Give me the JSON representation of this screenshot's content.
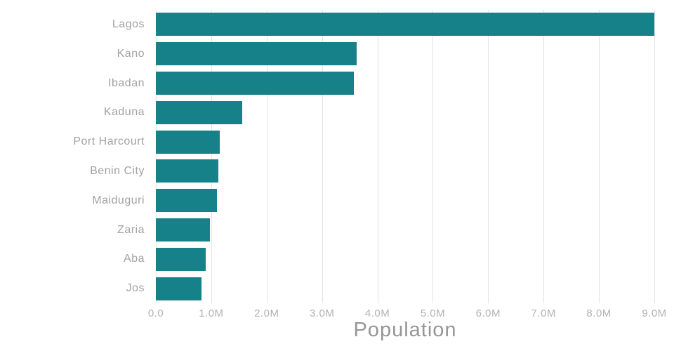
{
  "chart_data": {
    "type": "bar",
    "orientation": "horizontal",
    "title": "",
    "xlabel": "Population",
    "ylabel": "",
    "categories": [
      "Lagos",
      "Kano",
      "Ibadan",
      "Kaduna",
      "Port Harcourt",
      "Benin City",
      "Maiduguri",
      "Zaria",
      "Aba",
      "Jos"
    ],
    "values_millions": [
      9.0,
      3.63,
      3.57,
      1.56,
      1.15,
      1.13,
      1.1,
      0.98,
      0.9,
      0.82
    ],
    "xlim_millions": [
      0,
      9.0
    ],
    "x_tick_values_millions": [
      0,
      1,
      2,
      3,
      4,
      5,
      6,
      7,
      8,
      9
    ],
    "x_tick_labels": [
      "0.0",
      "1.0M",
      "2.0M",
      "3.0M",
      "4.0M",
      "5.0M",
      "6.0M",
      "7.0M",
      "8.0M",
      "9.0M"
    ],
    "grid": true,
    "legend": false,
    "colors": {
      "bar": "#17818a",
      "gridline": "#e4e4e4",
      "category_label": "#a2a2a2",
      "tick_label": "#b2b2b2",
      "axis_title": "#969696",
      "background": "#ffffff"
    }
  }
}
